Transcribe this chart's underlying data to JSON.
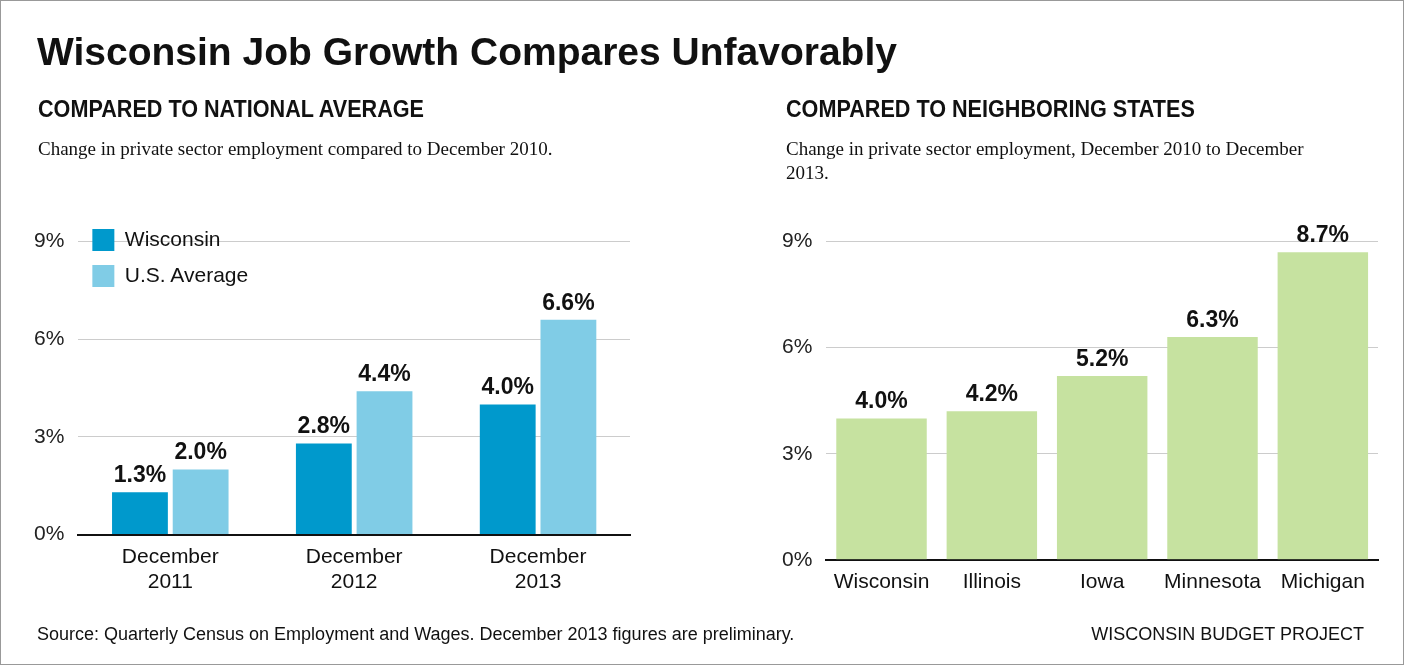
{
  "chart_data": [
    {
      "type": "other",
      "title": "Wisconsin Job Growth Compares Unfavorably",
      "annotations": [
        "Source: Quarterly Census on Employment and Wages. December 2013 figures are preliminary.",
        "WISCONSIN BUDGET PROJECT"
      ]
    },
    {
      "type": "bar",
      "title": "COMPARED TO NATIONAL AVERAGE",
      "subtitle": "Change in private sector employment compared to December 2010.",
      "categories": [
        "December 2011",
        "December 2012",
        "December 2013"
      ],
      "series": [
        {
          "name": "Wisconsin",
          "color": "#0099cc",
          "values": [
            1.3,
            2.8,
            4.0
          ],
          "value_labels": [
            "1.3%",
            "2.8%",
            "4.0%"
          ]
        },
        {
          "name": "U.S. Average",
          "color": "#80cce6",
          "values": [
            2.0,
            4.4,
            6.6
          ],
          "value_labels": [
            "2.0%",
            "4.4%",
            "6.6%"
          ]
        }
      ],
      "ylim": [
        0,
        9
      ],
      "yticks": [
        {
          "value": 0,
          "label": "0%"
        },
        {
          "value": 3,
          "label": "3%"
        },
        {
          "value": 6,
          "label": "6%"
        },
        {
          "value": 9,
          "label": "9%"
        }
      ],
      "grid": "y",
      "legend": "top left"
    },
    {
      "type": "bar",
      "title": "COMPARED TO NEIGHBORING STATES",
      "subtitle": "Change in private sector employment, December 2010 to December 2013.",
      "categories": [
        "Wisconsin",
        "Illinois",
        "Iowa",
        "Minnesota",
        "Michigan"
      ],
      "series": [
        {
          "color": "#c6e2a0",
          "values": [
            4.0,
            4.2,
            5.2,
            6.3,
            8.7
          ],
          "value_labels": [
            "4.0%",
            "4.2%",
            "5.2%",
            "6.3%",
            "8.7%"
          ]
        }
      ],
      "ylim": [
        0,
        9
      ],
      "yticks": [
        {
          "value": 0,
          "label": "0%"
        },
        {
          "value": 3,
          "label": "3%"
        },
        {
          "value": 6,
          "label": "6%"
        },
        {
          "value": 9,
          "label": "9%"
        }
      ],
      "grid": "y"
    }
  ]
}
